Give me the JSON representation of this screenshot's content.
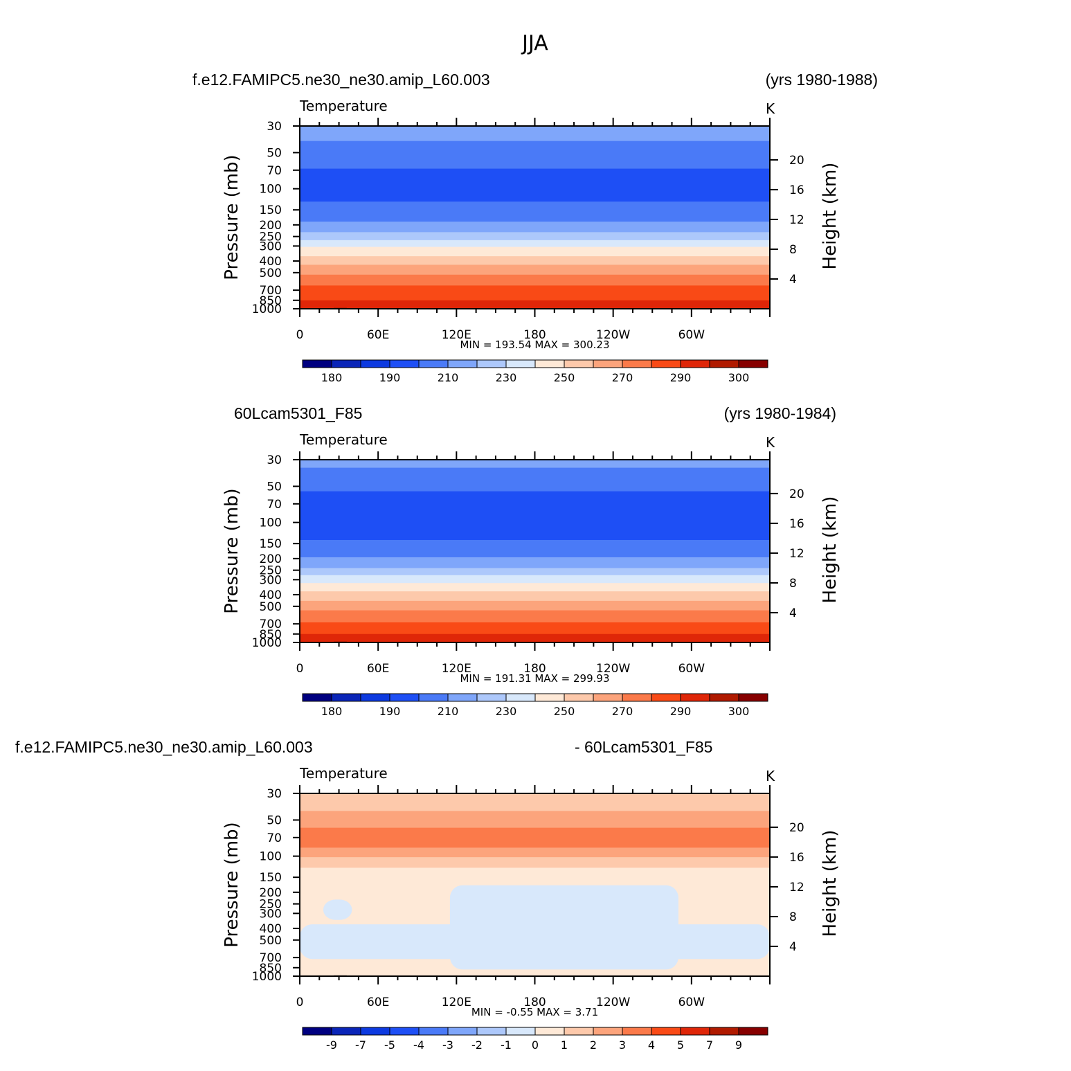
{
  "figure_title": "JJA",
  "chart_data": [
    {
      "type": "heatmap",
      "case_label": "f.e12.FAMIPC5.ne30_ne30.amip_L60.003",
      "years_label": "(yrs 1980-1988)",
      "variable": "Temperature",
      "units": "K",
      "ylabel_left": "Pressure (mb)",
      "ylabel_right": "Height (km)",
      "x_tick_labels": [
        "0",
        "60E",
        "120E",
        "180",
        "120W",
        "60W"
      ],
      "x_tick_longitudes": [
        0,
        60,
        120,
        180,
        240,
        300
      ],
      "xlim": [
        0,
        360
      ],
      "y_tick_labels": [
        "30",
        "50",
        "70",
        "100",
        "150",
        "200",
        "250",
        "300",
        "400",
        "500",
        "700",
        "850",
        "1000"
      ],
      "y_ticks_mb": [
        30,
        50,
        70,
        100,
        150,
        200,
        250,
        300,
        400,
        500,
        700,
        850,
        1000
      ],
      "ylim_mb": [
        1000,
        30
      ],
      "height_tick_labels": [
        "4",
        "8",
        "12",
        "16",
        "20"
      ],
      "height_ticks_km": [
        4,
        8,
        12,
        16,
        20
      ],
      "minmax_text": "MIN = 193.54 MAX = 300.23",
      "min": 193.54,
      "max": 300.23,
      "contour_levels": [
        180,
        185,
        190,
        200,
        210,
        220,
        230,
        240,
        250,
        260,
        270,
        280,
        290,
        295,
        300
      ],
      "colorbar_labels": [
        "180",
        "190",
        "210",
        "230",
        "250",
        "270",
        "290",
        "300"
      ],
      "colorbar_label_positions": [
        1,
        3,
        5,
        7,
        9,
        11,
        13,
        15
      ],
      "layers": [
        {
          "top_mb": 30,
          "bottom_mb": 40,
          "class": 5
        },
        {
          "top_mb": 40,
          "bottom_mb": 68,
          "class": 4
        },
        {
          "top_mb": 68,
          "bottom_mb": 128,
          "class": 3
        },
        {
          "top_mb": 128,
          "bottom_mb": 188,
          "class": 4
        },
        {
          "top_mb": 188,
          "bottom_mb": 230,
          "class": 5
        },
        {
          "top_mb": 230,
          "bottom_mb": 268,
          "class": 6
        },
        {
          "top_mb": 268,
          "bottom_mb": 305,
          "class": 7
        },
        {
          "top_mb": 305,
          "bottom_mb": 365,
          "class": 8
        },
        {
          "top_mb": 365,
          "bottom_mb": 430,
          "class": 9
        },
        {
          "top_mb": 430,
          "bottom_mb": 520,
          "class": 10
        },
        {
          "top_mb": 520,
          "bottom_mb": 640,
          "class": 11
        },
        {
          "top_mb": 640,
          "bottom_mb": 850,
          "class": 12
        },
        {
          "top_mb": 850,
          "bottom_mb": 1000,
          "class": 13
        }
      ]
    },
    {
      "type": "heatmap",
      "case_label": "60Lcam5301_F85",
      "years_label": "(yrs 1980-1984)",
      "variable": "Temperature",
      "units": "K",
      "ylabel_left": "Pressure (mb)",
      "ylabel_right": "Height (km)",
      "x_tick_labels": [
        "0",
        "60E",
        "120E",
        "180",
        "120W",
        "60W"
      ],
      "x_tick_longitudes": [
        0,
        60,
        120,
        180,
        240,
        300
      ],
      "xlim": [
        0,
        360
      ],
      "y_tick_labels": [
        "30",
        "50",
        "70",
        "100",
        "150",
        "200",
        "250",
        "300",
        "400",
        "500",
        "700",
        "850",
        "1000"
      ],
      "y_ticks_mb": [
        30,
        50,
        70,
        100,
        150,
        200,
        250,
        300,
        400,
        500,
        700,
        850,
        1000
      ],
      "ylim_mb": [
        1000,
        30
      ],
      "height_tick_labels": [
        "4",
        "8",
        "12",
        "16",
        "20"
      ],
      "height_ticks_km": [
        4,
        8,
        12,
        16,
        20
      ],
      "minmax_text": "MIN = 191.31 MAX = 299.93",
      "min": 191.31,
      "max": 299.93,
      "contour_levels": [
        180,
        185,
        190,
        200,
        210,
        220,
        230,
        240,
        250,
        260,
        270,
        280,
        290,
        295,
        300
      ],
      "colorbar_labels": [
        "180",
        "190",
        "210",
        "230",
        "250",
        "270",
        "290",
        "300"
      ],
      "colorbar_label_positions": [
        1,
        3,
        5,
        7,
        9,
        11,
        13,
        15
      ],
      "layers": [
        {
          "top_mb": 30,
          "bottom_mb": 35,
          "class": 5
        },
        {
          "top_mb": 35,
          "bottom_mb": 55,
          "class": 4
        },
        {
          "top_mb": 55,
          "bottom_mb": 140,
          "class": 3
        },
        {
          "top_mb": 140,
          "bottom_mb": 195,
          "class": 4
        },
        {
          "top_mb": 195,
          "bottom_mb": 240,
          "class": 5
        },
        {
          "top_mb": 240,
          "bottom_mb": 275,
          "class": 6
        },
        {
          "top_mb": 275,
          "bottom_mb": 320,
          "class": 7
        },
        {
          "top_mb": 320,
          "bottom_mb": 375,
          "class": 8
        },
        {
          "top_mb": 375,
          "bottom_mb": 450,
          "class": 9
        },
        {
          "top_mb": 450,
          "bottom_mb": 540,
          "class": 10
        },
        {
          "top_mb": 540,
          "bottom_mb": 680,
          "class": 11
        },
        {
          "top_mb": 680,
          "bottom_mb": 850,
          "class": 12
        },
        {
          "top_mb": 850,
          "bottom_mb": 1000,
          "class": 13
        }
      ]
    },
    {
      "type": "heatmap",
      "case_label": "f.e12.FAMIPC5.ne30_ne30.amip_L60.003",
      "years_label": "- 60Lcam5301_F85",
      "variable": "Temperature",
      "units": "K",
      "ylabel_left": "Pressure (mb)",
      "ylabel_right": "Height (km)",
      "x_tick_labels": [
        "0",
        "60E",
        "120E",
        "180",
        "120W",
        "60W"
      ],
      "x_tick_longitudes": [
        0,
        60,
        120,
        180,
        240,
        300
      ],
      "xlim": [
        0,
        360
      ],
      "y_tick_labels": [
        "30",
        "50",
        "70",
        "100",
        "150",
        "200",
        "250",
        "300",
        "400",
        "500",
        "700",
        "850",
        "1000"
      ],
      "y_ticks_mb": [
        30,
        50,
        70,
        100,
        150,
        200,
        250,
        300,
        400,
        500,
        700,
        850,
        1000
      ],
      "ylim_mb": [
        1000,
        30
      ],
      "height_tick_labels": [
        "4",
        "8",
        "12",
        "16",
        "20"
      ],
      "height_ticks_km": [
        4,
        8,
        12,
        16,
        20
      ],
      "minmax_text": "MIN = -0.55 MAX = 3.71",
      "min": -0.55,
      "max": 3.71,
      "contour_levels": [
        -9,
        -7,
        -5,
        -4,
        -3,
        -2,
        -1,
        0,
        1,
        2,
        3,
        4,
        5,
        7,
        9
      ],
      "colorbar_labels": [
        "-9",
        "-7",
        "-5",
        "-4",
        "-3",
        "-2",
        "-1",
        "0",
        "1",
        "2",
        "3",
        "4",
        "5",
        "7",
        "9"
      ],
      "colorbar_label_positions": [
        1,
        2,
        3,
        4,
        5,
        6,
        7,
        8,
        9,
        10,
        11,
        12,
        13,
        14,
        15
      ],
      "layers": [
        {
          "top_mb": 30,
          "bottom_mb": 42,
          "class": 9
        },
        {
          "top_mb": 42,
          "bottom_mb": 58,
          "class": 10
        },
        {
          "top_mb": 58,
          "bottom_mb": 85,
          "class": 11
        },
        {
          "top_mb": 85,
          "bottom_mb": 102,
          "class": 10
        },
        {
          "top_mb": 102,
          "bottom_mb": 125,
          "class": 9
        },
        {
          "top_mb": 125,
          "bottom_mb": 1000,
          "class": 8
        }
      ],
      "regions": [
        {
          "lon_from": 115,
          "lon_to": 290,
          "top_mb": 175,
          "bottom_mb": 880,
          "class": 7
        },
        {
          "lon_from": 0,
          "lon_to": 360,
          "top_mb": 370,
          "bottom_mb": 720,
          "class": 7
        },
        {
          "lon_from": 18,
          "lon_to": 40,
          "top_mb": 230,
          "bottom_mb": 340,
          "class": 7
        }
      ]
    }
  ],
  "colorbar_colors": [
    "#000080",
    "#0a25b8",
    "#0d3ae0",
    "#1e4ff5",
    "#4a7af7",
    "#7fa6fa",
    "#adc8fb",
    "#d8e8fb",
    "#fee9d7",
    "#fdc9ab",
    "#fca47c",
    "#fb7a4a",
    "#f94a16",
    "#df2608",
    "#b01a00",
    "#870000"
  ],
  "topography_color": "#000000",
  "background_color": "#ffffff",
  "text_color": "#000000"
}
